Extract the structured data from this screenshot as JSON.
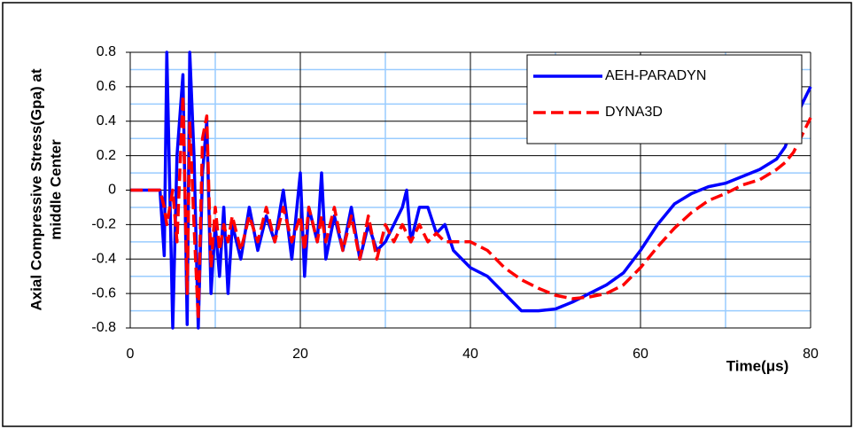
{
  "chart_data": {
    "type": "line",
    "ylabel": [
      "Axial Compressive Stress(Gpa) at",
      "middle Center"
    ],
    "xlabel": "Time(μs)",
    "x": [
      0,
      3.5,
      4,
      4.3,
      5,
      5.5,
      6.2,
      6.7,
      7,
      7.5,
      8,
      8.5,
      9,
      9.5,
      10,
      10.5,
      11,
      11.5,
      12,
      13,
      14,
      15,
      16,
      17,
      18,
      19,
      20,
      20.5,
      21,
      22,
      22.5,
      23,
      24,
      25,
      26,
      27,
      28,
      29,
      30,
      31,
      32,
      32.5,
      33,
      34,
      35,
      36,
      37,
      38,
      39,
      40,
      42,
      44,
      46,
      48,
      50,
      52,
      54,
      56,
      58,
      60,
      62,
      64,
      66,
      68,
      70,
      72,
      74,
      76,
      77,
      78,
      79,
      80
    ],
    "series": [
      {
        "name": "AEH-PARADYN",
        "color": "#0000ff",
        "dashed": false,
        "values": [
          0,
          0,
          -0.38,
          0.8,
          -0.8,
          0.2,
          0.67,
          -0.78,
          0.8,
          0.2,
          -0.8,
          0.1,
          0.4,
          -0.6,
          -0.2,
          -0.5,
          -0.1,
          -0.6,
          -0.2,
          -0.4,
          -0.1,
          -0.35,
          -0.15,
          -0.3,
          0.0,
          -0.4,
          0.1,
          -0.5,
          -0.1,
          -0.3,
          0.1,
          -0.4,
          -0.15,
          -0.35,
          -0.1,
          -0.4,
          -0.2,
          -0.35,
          -0.3,
          -0.2,
          -0.1,
          0.0,
          -0.3,
          -0.1,
          -0.1,
          -0.25,
          -0.2,
          -0.35,
          -0.4,
          -0.45,
          -0.5,
          -0.6,
          -0.7,
          -0.7,
          -0.69,
          -0.65,
          -0.6,
          -0.55,
          -0.48,
          -0.35,
          -0.2,
          -0.08,
          -0.02,
          0.02,
          0.04,
          0.08,
          0.12,
          0.18,
          0.25,
          0.38,
          0.5,
          0.6
        ]
      },
      {
        "name": "DYNA3D",
        "color": "#ff0000",
        "dashed": true,
        "values": [
          0,
          0,
          -0.1,
          -0.2,
          0.0,
          -0.3,
          0.55,
          -0.6,
          0.4,
          -0.2,
          -0.75,
          0.3,
          0.43,
          -0.45,
          -0.1,
          -0.35,
          -0.2,
          -0.3,
          -0.15,
          -0.35,
          -0.15,
          -0.3,
          -0.1,
          -0.3,
          -0.1,
          -0.3,
          -0.15,
          -0.35,
          -0.1,
          -0.3,
          -0.15,
          -0.3,
          -0.1,
          -0.35,
          -0.15,
          -0.4,
          -0.15,
          -0.4,
          -0.2,
          -0.3,
          -0.2,
          -0.25,
          -0.3,
          -0.2,
          -0.3,
          -0.25,
          -0.3,
          -0.3,
          -0.3,
          -0.3,
          -0.35,
          -0.45,
          -0.52,
          -0.57,
          -0.61,
          -0.63,
          -0.62,
          -0.6,
          -0.55,
          -0.45,
          -0.33,
          -0.22,
          -0.13,
          -0.06,
          -0.02,
          0.03,
          0.06,
          0.12,
          0.16,
          0.22,
          0.32,
          0.42
        ]
      }
    ],
    "xlim": [
      0,
      80
    ],
    "xticks": [
      0,
      20,
      40,
      60,
      80
    ],
    "ylim": [
      -0.8,
      0.8
    ],
    "yticks": [
      0.8,
      0.6,
      0.4,
      0.2,
      0,
      -0.2,
      -0.4,
      -0.6,
      -0.8
    ],
    "grid": true,
    "grid_color": "#000000",
    "minor_xgrid": [
      10,
      30,
      50,
      70
    ],
    "minor_ygrid": [
      0.7,
      0.5,
      0.3,
      0.1,
      -0.1,
      -0.3,
      -0.5,
      -0.7
    ],
    "minor_grid_color": "#99ccff",
    "legend": "top-right"
  }
}
